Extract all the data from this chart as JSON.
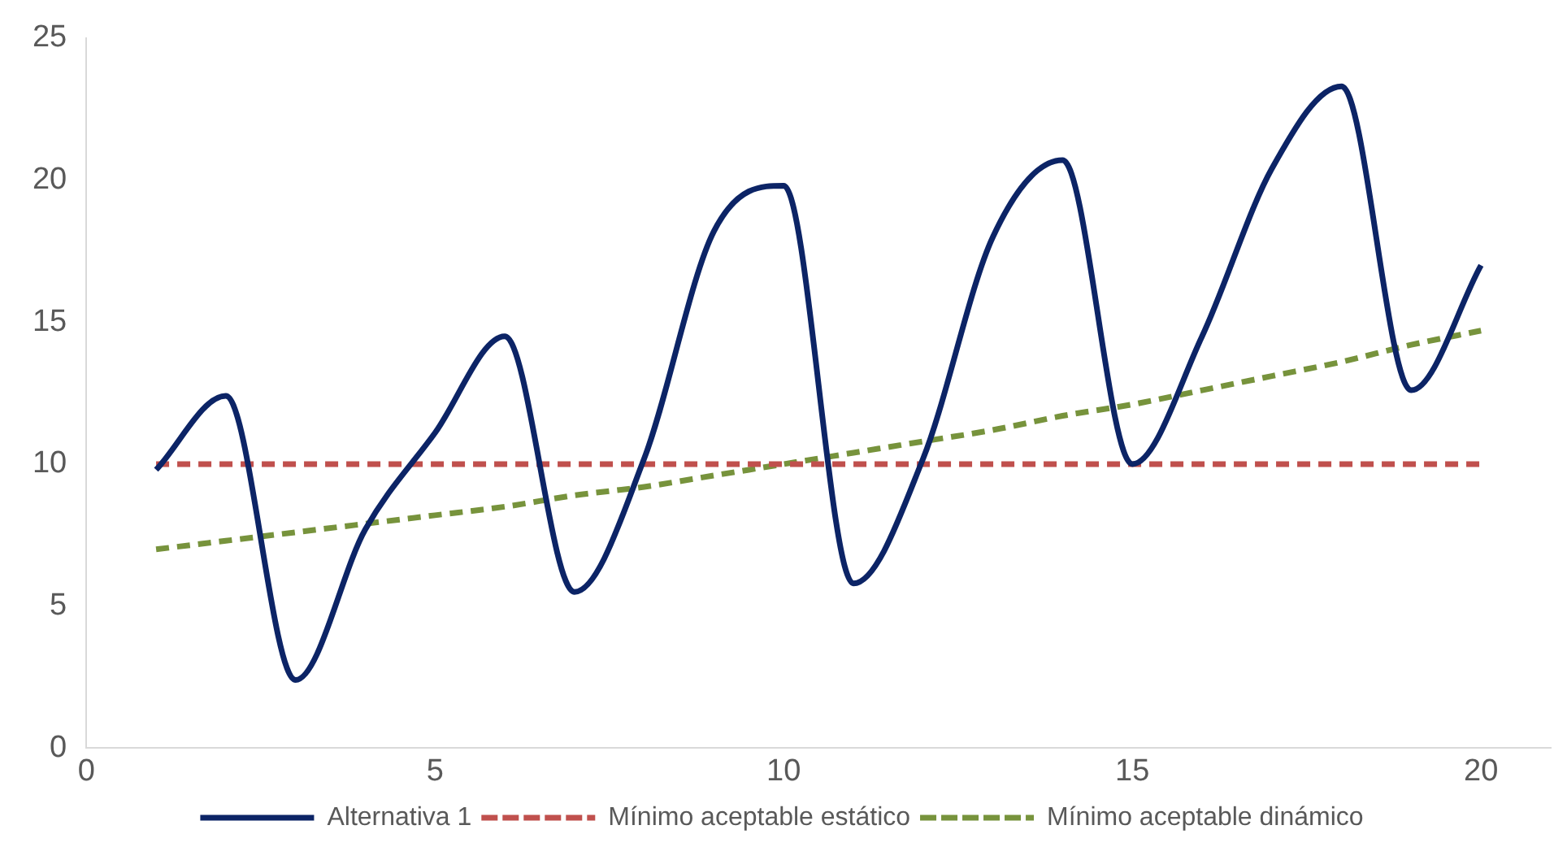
{
  "chart_data": {
    "type": "line",
    "x": [
      1,
      2,
      3,
      4,
      5,
      6,
      7,
      8,
      9,
      10,
      11,
      12,
      13,
      14,
      15,
      16,
      17,
      18,
      19,
      20
    ],
    "series": [
      {
        "name": "Alternativa 1",
        "color": "#0c2466",
        "line_style": "solid",
        "values": [
          9.8,
          12.4,
          2.4,
          7.7,
          11.1,
          14.5,
          5.5,
          10.2,
          18.2,
          19.8,
          5.8,
          10.2,
          18,
          20.7,
          10,
          14.5,
          20.4,
          23.3,
          12.6,
          17
        ]
      },
      {
        "name": "Mínimo aceptable estático",
        "color": "#c0504d",
        "line_style": "dashed",
        "values": [
          10,
          10,
          10,
          10,
          10,
          10,
          10,
          10,
          10,
          10,
          10,
          10,
          10,
          10,
          10,
          10,
          10,
          10,
          10,
          10
        ]
      },
      {
        "name": "Mínimo aceptable dinámico",
        "color": "#77933c",
        "line_style": "dashed",
        "values": [
          7,
          7.3,
          7.6,
          7.9,
          8.2,
          8.5,
          8.9,
          9.2,
          9.6,
          10,
          10.4,
          10.8,
          11.2,
          11.7,
          12.1,
          12.6,
          13.1,
          13.6,
          14.2,
          14.7
        ]
      }
    ],
    "xlim": [
      0,
      21
    ],
    "xticks": [
      0,
      5,
      10,
      15,
      20
    ],
    "ylim": [
      0,
      25
    ],
    "yticks": [
      0,
      5,
      10,
      15,
      20,
      25
    ],
    "grid": false,
    "legend": "bottom",
    "marker": "none"
  }
}
